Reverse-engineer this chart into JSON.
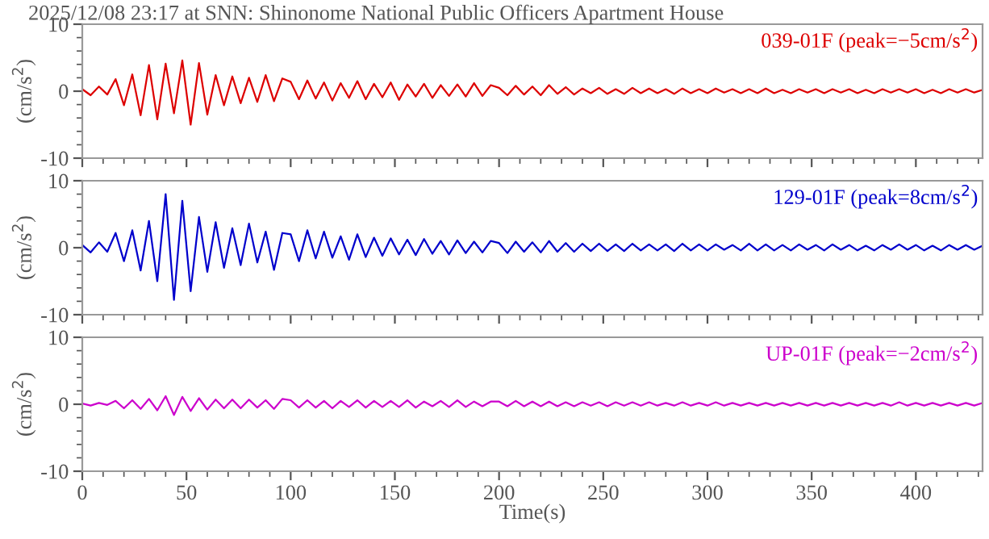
{
  "chart_data": [
    {
      "type": "line",
      "title": "2025/12/08 23:17 at SNN: Shinonome National Public Officers Apartment House",
      "ylabel": "(cm/s$^{2}$)",
      "annotations": [
        "039-01F (peak=−5cm/s$^{2}$)"
      ],
      "xlim": [
        0,
        432
      ],
      "xticks": [
        0,
        50,
        100,
        150,
        200,
        250,
        300,
        350,
        400
      ],
      "ylim": [
        -10,
        10
      ],
      "yticks": [
        -10,
        0,
        10
      ],
      "tick_labels": "y",
      "grid": false,
      "legend": false,
      "x": [
        0,
        4,
        8,
        12,
        16,
        20,
        24,
        28,
        32,
        36,
        40,
        44,
        48,
        52,
        56,
        60,
        64,
        68,
        72,
        76,
        80,
        84,
        88,
        92,
        96,
        100,
        104,
        108,
        112,
        116,
        120,
        124,
        128,
        132,
        136,
        140,
        144,
        148,
        152,
        156,
        160,
        164,
        168,
        172,
        176,
        180,
        184,
        188,
        192,
        196,
        200,
        204,
        208,
        212,
        216,
        220,
        224,
        228,
        232,
        236,
        240,
        244,
        248,
        252,
        256,
        260,
        264,
        268,
        272,
        276,
        280,
        284,
        288,
        292,
        296,
        300,
        304,
        308,
        312,
        316,
        320,
        324,
        328,
        332,
        336,
        340,
        344,
        348,
        352,
        356,
        360,
        364,
        368,
        372,
        376,
        380,
        384,
        388,
        392,
        396,
        400,
        404,
        408,
        412,
        416,
        420,
        424,
        428,
        432
      ],
      "series": [
        {
          "color": "#dd0000",
          "values": [
            0.3,
            -0.6,
            0.7,
            -0.5,
            1.8,
            -2.1,
            2.5,
            -3.6,
            3.9,
            -4.2,
            4.1,
            -3.3,
            4.6,
            -5,
            4.2,
            -3.5,
            2.4,
            -2.1,
            2.2,
            -1.8,
            2.0,
            -1.6,
            2.4,
            -1.5,
            1.9,
            1.4,
            -1.2,
            1.6,
            -1.1,
            1.3,
            -1.4,
            1.2,
            -1.0,
            1.5,
            -1.2,
            1.1,
            -0.9,
            1.3,
            -1.3,
            1.0,
            -0.8,
            1.1,
            -1.0,
            0.9,
            -0.7,
            1.0,
            -0.8,
            1.2,
            -0.7,
            0.9,
            0.5,
            -0.6,
            0.8,
            -0.5,
            0.7,
            -0.6,
            0.9,
            -0.4,
            0.6,
            -0.5,
            0.4,
            -0.3,
            0.5,
            -0.4,
            0.3,
            -0.4,
            0.5,
            -0.3,
            0.4,
            -0.3,
            0.3,
            -0.4,
            0.4,
            -0.3,
            0.3,
            -0.3,
            0.4,
            -0.2,
            0.3,
            -0.3,
            0.3,
            -0.3,
            0.4,
            -0.3,
            0.2,
            -0.3,
            0.3,
            -0.2,
            0.3,
            -0.3,
            0.3,
            -0.2,
            0.3,
            -0.3,
            0.2,
            -0.3,
            0.3,
            -0.2,
            0.3,
            -0.2,
            0.3,
            -0.3,
            0.2,
            -0.3,
            0.3,
            -0.2,
            0.3,
            -0.2,
            0.2
          ]
        }
      ]
    },
    {
      "type": "line",
      "ylabel": "(cm/s$^{2}$)",
      "annotations": [
        "129-01F (peak=8cm/s$^{2}$)"
      ],
      "xlim": [
        0,
        432
      ],
      "xticks": [
        0,
        50,
        100,
        150,
        200,
        250,
        300,
        350,
        400
      ],
      "ylim": [
        -10,
        10
      ],
      "yticks": [
        -10,
        0,
        10
      ],
      "tick_labels": "y",
      "grid": false,
      "legend": false,
      "x": [
        0,
        4,
        8,
        12,
        16,
        20,
        24,
        28,
        32,
        36,
        40,
        44,
        48,
        52,
        56,
        60,
        64,
        68,
        72,
        76,
        80,
        84,
        88,
        92,
        96,
        100,
        104,
        108,
        112,
        116,
        120,
        124,
        128,
        132,
        136,
        140,
        144,
        148,
        152,
        156,
        160,
        164,
        168,
        172,
        176,
        180,
        184,
        188,
        192,
        196,
        200,
        204,
        208,
        212,
        216,
        220,
        224,
        228,
        232,
        236,
        240,
        244,
        248,
        252,
        256,
        260,
        264,
        268,
        272,
        276,
        280,
        284,
        288,
        292,
        296,
        300,
        304,
        308,
        312,
        316,
        320,
        324,
        328,
        332,
        336,
        340,
        344,
        348,
        352,
        356,
        360,
        364,
        368,
        372,
        376,
        380,
        384,
        388,
        392,
        396,
        400,
        404,
        408,
        412,
        416,
        420,
        424,
        428,
        432
      ],
      "series": [
        {
          "color": "#0000cc",
          "values": [
            0.4,
            -0.7,
            0.8,
            -0.6,
            2.2,
            -2.0,
            2.6,
            -3.4,
            4.0,
            -5.0,
            8.0,
            -7.8,
            7.0,
            -6.5,
            4.6,
            -3.6,
            3.8,
            -3.0,
            2.9,
            -2.6,
            3.6,
            -2.2,
            2.4,
            -3.3,
            2.2,
            2.0,
            -2.0,
            2.6,
            -1.6,
            2.4,
            -1.5,
            1.7,
            -1.8,
            2.0,
            -1.4,
            1.5,
            -1.2,
            1.4,
            -1.0,
            1.2,
            -1.1,
            1.3,
            -0.9,
            1.0,
            -1.0,
            1.1,
            -0.8,
            0.9,
            -0.7,
            1.0,
            0.7,
            -0.8,
            0.9,
            -0.6,
            0.8,
            -0.7,
            1.0,
            -0.6,
            0.7,
            -0.6,
            0.6,
            -0.5,
            0.6,
            -0.5,
            0.5,
            -0.5,
            0.6,
            -0.4,
            0.5,
            -0.4,
            0.5,
            -0.5,
            0.6,
            -0.4,
            0.5,
            -0.4,
            0.5,
            -0.3,
            0.4,
            -0.4,
            0.6,
            -0.4,
            0.5,
            -0.4,
            0.4,
            -0.4,
            0.5,
            -0.3,
            0.4,
            -0.4,
            0.5,
            -0.3,
            0.4,
            -0.4,
            0.3,
            -0.4,
            0.4,
            -0.3,
            0.5,
            -0.3,
            0.4,
            -0.4,
            0.3,
            -0.4,
            0.4,
            -0.3,
            0.4,
            -0.3,
            0.3
          ]
        }
      ]
    },
    {
      "type": "line",
      "xlabel": "Time(s)",
      "ylabel": "(cm/s$^{2}$)",
      "annotations": [
        "UP-01F (peak=−2cm/s$^{2}$)"
      ],
      "xlim": [
        0,
        432
      ],
      "xticks": [
        0,
        50,
        100,
        150,
        200,
        250,
        300,
        350,
        400
      ],
      "ylim": [
        -10,
        10
      ],
      "yticks": [
        -10,
        0,
        10
      ],
      "grid": false,
      "legend": false,
      "x": [
        0,
        4,
        8,
        12,
        16,
        20,
        24,
        28,
        32,
        36,
        40,
        44,
        48,
        52,
        56,
        60,
        64,
        68,
        72,
        76,
        80,
        84,
        88,
        92,
        96,
        100,
        104,
        108,
        112,
        116,
        120,
        124,
        128,
        132,
        136,
        140,
        144,
        148,
        152,
        156,
        160,
        164,
        168,
        172,
        176,
        180,
        184,
        188,
        192,
        196,
        200,
        204,
        208,
        212,
        216,
        220,
        224,
        228,
        232,
        236,
        240,
        244,
        248,
        252,
        256,
        260,
        264,
        268,
        272,
        276,
        280,
        284,
        288,
        292,
        296,
        300,
        304,
        308,
        312,
        316,
        320,
        324,
        328,
        332,
        336,
        340,
        344,
        348,
        352,
        356,
        360,
        364,
        368,
        372,
        376,
        380,
        384,
        388,
        392,
        396,
        400,
        404,
        408,
        412,
        416,
        420,
        424,
        428,
        432
      ],
      "series": [
        {
          "color": "#cc00cc",
          "values": [
            0.1,
            -0.2,
            0.2,
            -0.1,
            0.5,
            -0.6,
            0.6,
            -0.7,
            0.8,
            -0.9,
            1.2,
            -1.6,
            1.1,
            -1.0,
            0.9,
            -0.8,
            0.7,
            -0.6,
            0.7,
            -0.6,
            0.7,
            -0.5,
            0.6,
            -0.7,
            0.8,
            0.6,
            -0.5,
            0.6,
            -0.5,
            0.5,
            -0.6,
            0.5,
            -0.4,
            0.6,
            -0.5,
            0.5,
            -0.4,
            0.5,
            -0.4,
            0.6,
            -0.5,
            0.4,
            -0.3,
            0.5,
            -0.4,
            0.6,
            -0.4,
            0.4,
            -0.3,
            0.4,
            0.4,
            -0.3,
            0.5,
            -0.3,
            0.4,
            -0.3,
            0.4,
            -0.3,
            0.3,
            -0.3,
            0.3,
            -0.2,
            0.3,
            -0.3,
            0.3,
            -0.2,
            0.3,
            -0.2,
            0.3,
            -0.2,
            0.2,
            -0.2,
            0.3,
            -0.2,
            0.2,
            -0.2,
            0.3,
            -0.2,
            0.2,
            -0.2,
            0.2,
            -0.2,
            0.2,
            -0.2,
            0.2,
            -0.2,
            0.2,
            -0.2,
            0.2,
            -0.2,
            0.2,
            -0.2,
            0.2,
            -0.2,
            0.2,
            -0.2,
            0.2,
            -0.2,
            0.3,
            -0.2,
            0.2,
            -0.2,
            0.2,
            -0.2,
            0.2,
            -0.2,
            0.2,
            -0.2,
            0.2
          ]
        }
      ]
    }
  ]
}
